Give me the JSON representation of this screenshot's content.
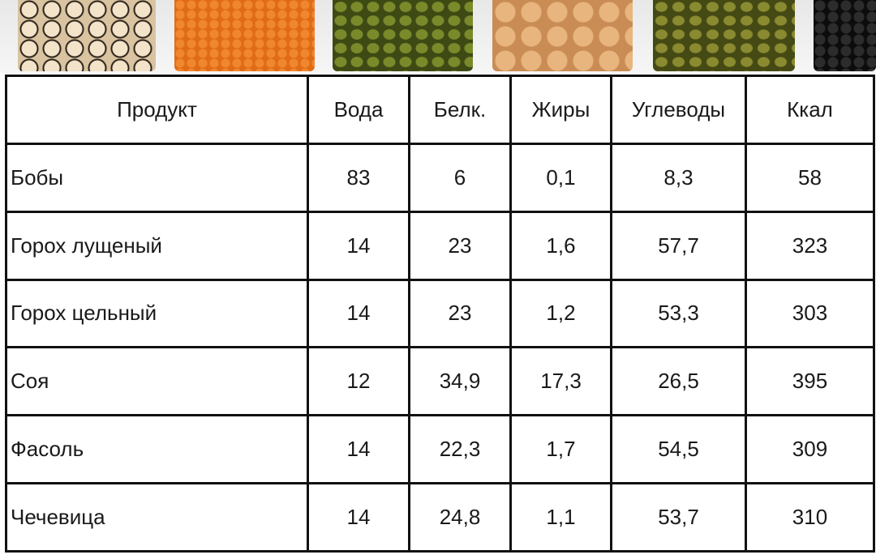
{
  "table": {
    "header": [
      "Продукт",
      "Вода",
      "Белк.",
      "Жиры",
      "Углеводы",
      "Ккал"
    ],
    "rows": [
      [
        "Бобы",
        "83",
        "6",
        "0,1",
        "8,3",
        "58"
      ],
      [
        "Горох лущеный",
        "14",
        "23",
        "1,6",
        "57,7",
        "323"
      ],
      [
        "Горох цельный",
        "14",
        "23",
        "1,2",
        "53,3",
        "303"
      ],
      [
        "Соя",
        "12",
        "34,9",
        "17,3",
        "26,5",
        "395"
      ],
      [
        "Фасоль",
        "14",
        "22,3",
        "1,7",
        "54,5",
        "309"
      ],
      [
        "Чечевица",
        "14",
        "24,8",
        "1,1",
        "53,7",
        "310"
      ]
    ]
  }
}
